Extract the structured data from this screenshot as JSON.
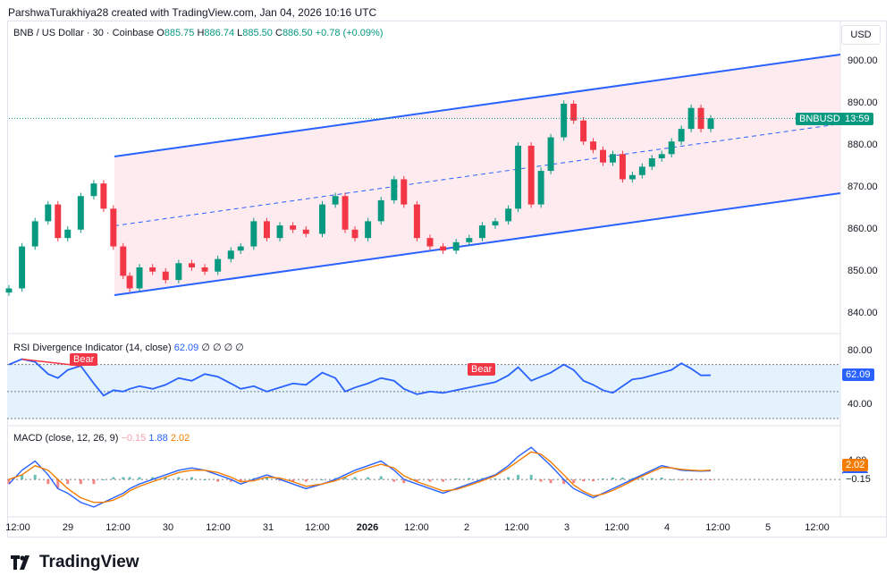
{
  "header": {
    "attribution": "ParshwaTurakhiya28 created with TradingView.com, Jan 04, 2026 10:16 UTC"
  },
  "price_scale": {
    "currency": "USD"
  },
  "legend": {
    "symbol": "BNB / US Dollar · 30 · Coinbase",
    "o_label": "O",
    "o_value": "885.75",
    "h_label": "H",
    "h_value": "886.74",
    "l_label": "L",
    "l_value": "885.50",
    "c_label": "C",
    "c_value": "886.50",
    "change": "+0.78 (+0.09%)"
  },
  "rsi": {
    "label": "RSI Divergence Indicator (14, close)",
    "value": "62.09",
    "placeholders": "∅ ∅ ∅ ∅",
    "bear1": "Bear",
    "bear2": "Bear"
  },
  "macd": {
    "label": "MACD (close, 12, 26, 9)",
    "hist": "−0.15",
    "macd": "1.88",
    "signal": "2.02"
  },
  "price_tag": {
    "symbol": "BNBUSD",
    "countdown": "13:59"
  },
  "brand": {
    "name": "TradingView"
  },
  "colors": {
    "up": "#089981",
    "down": "#f23645",
    "channel": "#2962ff",
    "channel_fill": "#fde8ec",
    "rsi_fill": "#e3f2fd",
    "signal": "#f57c00"
  },
  "chart_data": {
    "type": "line",
    "title": "BNB / US Dollar · 30 · Coinbase",
    "x_ticks": [
      "12:00",
      "29",
      "12:00",
      "30",
      "12:00",
      "31",
      "12:00",
      "2026",
      "12:00",
      "2",
      "12:00",
      "3",
      "12:00",
      "4",
      "12:00",
      "5",
      "12:00"
    ],
    "price_ticks": [
      "900.00",
      "890.00",
      "880.00",
      "870.00",
      "860.00",
      "850.00",
      "840.00"
    ],
    "ylim": [
      838,
      903
    ],
    "series": [
      {
        "values": [
          846,
          856,
          862,
          866,
          858,
          860,
          868,
          871,
          865,
          856,
          849,
          846,
          851,
          850,
          848,
          852,
          851,
          850,
          853,
          855,
          856,
          862,
          858,
          861,
          860,
          859,
          866,
          868,
          860,
          858,
          862,
          867,
          872,
          866,
          858,
          856,
          855,
          857,
          858,
          861,
          862,
          865,
          880,
          866,
          874,
          882,
          890,
          886,
          881,
          879,
          876,
          878,
          872,
          873,
          875,
          877,
          878,
          881,
          884,
          889,
          884,
          886.5
        ]
      }
    ],
    "series_x": [
      0,
      0.4,
      0.8,
      1.2,
      1.5,
      1.8,
      2.2,
      2.6,
      2.9,
      3.2,
      3.5,
      3.7,
      4,
      4.4,
      4.8,
      5.2,
      5.6,
      6,
      6.4,
      6.8,
      7.1,
      7.5,
      7.9,
      8.3,
      8.7,
      9.1,
      9.6,
      10,
      10.3,
      10.6,
      11,
      11.4,
      11.8,
      12.1,
      12.5,
      12.9,
      13.3,
      13.7,
      14.1,
      14.5,
      14.9,
      15.3,
      15.6,
      16,
      16.3,
      16.6,
      17,
      17.3,
      17.6,
      17.9,
      18.2,
      18.5,
      18.8,
      19.1,
      19.4,
      19.7,
      20,
      20.3,
      20.6,
      20.9,
      21.2,
      21.5
    ],
    "rsi": {
      "ylim": [
        30,
        85
      ],
      "ticks": [
        "80.00",
        "40.00"
      ],
      "overbought": 70,
      "oversold": 30,
      "values": [
        70,
        74,
        72,
        63,
        60,
        66,
        69,
        56,
        47,
        51,
        50,
        52,
        54,
        52,
        55,
        60,
        58,
        63,
        61,
        56,
        52,
        54,
        50,
        53,
        56,
        55,
        64,
        60,
        50,
        53,
        56,
        60,
        58,
        52,
        48,
        50,
        49,
        51,
        53,
        55,
        57,
        62,
        68,
        58,
        61,
        64,
        70,
        66,
        58,
        55,
        51,
        49,
        54,
        59,
        60,
        62,
        64,
        66,
        71,
        67,
        62,
        62.09
      ]
    },
    "macd": {
      "ticks": [
        "4.00",
        "2.02",
        "1.88",
        "−0.15"
      ],
      "macd_values": [
        -1,
        2,
        4,
        1,
        -2,
        -3,
        -5,
        -6,
        -5,
        -4,
        -3,
        -2,
        -1,
        0,
        1,
        2,
        2.5,
        2,
        1,
        0,
        -1,
        0,
        1,
        0,
        -1,
        -2,
        -1,
        0,
        1,
        2,
        3,
        4,
        2,
        0,
        -1,
        -2,
        -3,
        -2,
        -1,
        0,
        1,
        3,
        5,
        7,
        5,
        3,
        0,
        -2,
        -3,
        -4,
        -3,
        -2,
        -1,
        0,
        1,
        2,
        3,
        2.5,
        2,
        1.88,
        1.8,
        1.88
      ],
      "signal_values": [
        0,
        1,
        3,
        2,
        0,
        -2,
        -4,
        -5,
        -5,
        -4.5,
        -3.5,
        -2.5,
        -1.5,
        -0.5,
        0.5,
        1.5,
        2,
        2,
        1.5,
        0.5,
        -0.5,
        -0.3,
        0.5,
        0.3,
        -0.5,
        -1.5,
        -1,
        -0.3,
        0.5,
        1.5,
        2.5,
        3.3,
        2.5,
        0.8,
        -0.5,
        -1.5,
        -2.5,
        -2.2,
        -1.3,
        -0.3,
        0.8,
        2.5,
        4,
        6,
        5.5,
        3.8,
        1,
        -1.2,
        -2.6,
        -3.6,
        -3.2,
        -2.4,
        -1.4,
        -0.3,
        0.7,
        1.7,
        2.6,
        2.5,
        2.2,
        2.02,
        1.9,
        2.02
      ]
    }
  }
}
